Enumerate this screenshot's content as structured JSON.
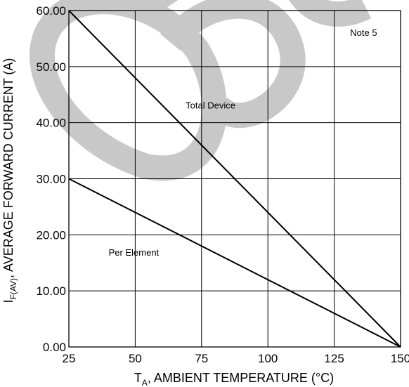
{
  "chart_data": {
    "type": "line",
    "xlabel_main": "T",
    "xlabel_sub": "A",
    "xlabel_rest": ", AMBIENT TEMPERATURE (°C)",
    "ylabel_main": "I",
    "ylabel_sub": "F(AV)",
    "ylabel_rest": ", AVERAGE FORWARD CURRENT (A)",
    "xlim": [
      25,
      150
    ],
    "ylim": [
      0,
      60
    ],
    "x_ticks": [
      25,
      50,
      75,
      100,
      125,
      150
    ],
    "x_tick_labels": [
      "25",
      "50",
      "75",
      "100",
      "125",
      "150"
    ],
    "y_ticks": [
      0,
      10,
      20,
      30,
      40,
      50,
      60
    ],
    "y_tick_labels": [
      "0.00",
      "10.00",
      "20.00",
      "30.00",
      "40.00",
      "50.00",
      "60.00"
    ],
    "grid": true,
    "series": [
      {
        "name": "Total Device",
        "x": [
          25,
          150
        ],
        "y": [
          60,
          0
        ]
      },
      {
        "name": "Per Element",
        "x": [
          25,
          150
        ],
        "y": [
          30,
          0
        ]
      }
    ],
    "annotations": [
      {
        "text": "Note 5",
        "x": 131,
        "y": 55.5
      },
      {
        "text": "Total Device",
        "x": 69,
        "y": 42.5
      },
      {
        "text": "Per Element",
        "x": 40,
        "y": 16.3
      }
    ],
    "watermark": "OBS"
  }
}
